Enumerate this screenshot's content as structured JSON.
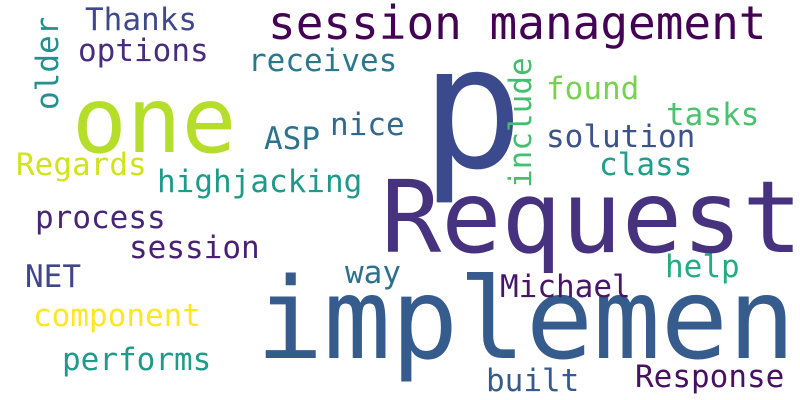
{
  "words": [
    {
      "text": "p",
      "color": "#3b4a8c"
    },
    {
      "text": "Request",
      "color": "#46327e"
    },
    {
      "text": "implement",
      "color": "#365c8d"
    },
    {
      "text": "one",
      "color": "#b5de2b"
    },
    {
      "text": "session management",
      "color": "#440154"
    },
    {
      "text": "Thanks",
      "color": "#3e4989"
    },
    {
      "text": "options",
      "color": "#472d7b"
    },
    {
      "text": "older",
      "color": "#21918c"
    },
    {
      "text": "receives",
      "color": "#2a788e"
    },
    {
      "text": "include",
      "color": "#44bf70"
    },
    {
      "text": "found",
      "color": "#7ad151"
    },
    {
      "text": "tasks",
      "color": "#4ac16d"
    },
    {
      "text": "nice",
      "color": "#31688e"
    },
    {
      "text": "ASP",
      "color": "#2c728e"
    },
    {
      "text": "solution",
      "color": "#3b528b"
    },
    {
      "text": "Regards",
      "color": "#d2e21b"
    },
    {
      "text": "class",
      "color": "#1f9e89"
    },
    {
      "text": "highjacking",
      "color": "#1f9a8a"
    },
    {
      "text": "process",
      "color": "#482677"
    },
    {
      "text": "session",
      "color": "#482173"
    },
    {
      "text": "NET",
      "color": "#404688"
    },
    {
      "text": "way",
      "color": "#2d708e"
    },
    {
      "text": "help",
      "color": "#25ab82"
    },
    {
      "text": "Michael",
      "color": "#481668"
    },
    {
      "text": "component",
      "color": "#fde725"
    },
    {
      "text": "performs",
      "color": "#1f9a8a"
    },
    {
      "text": "built",
      "color": "#375a8c"
    },
    {
      "text": "Response",
      "color": "#471063"
    }
  ]
}
